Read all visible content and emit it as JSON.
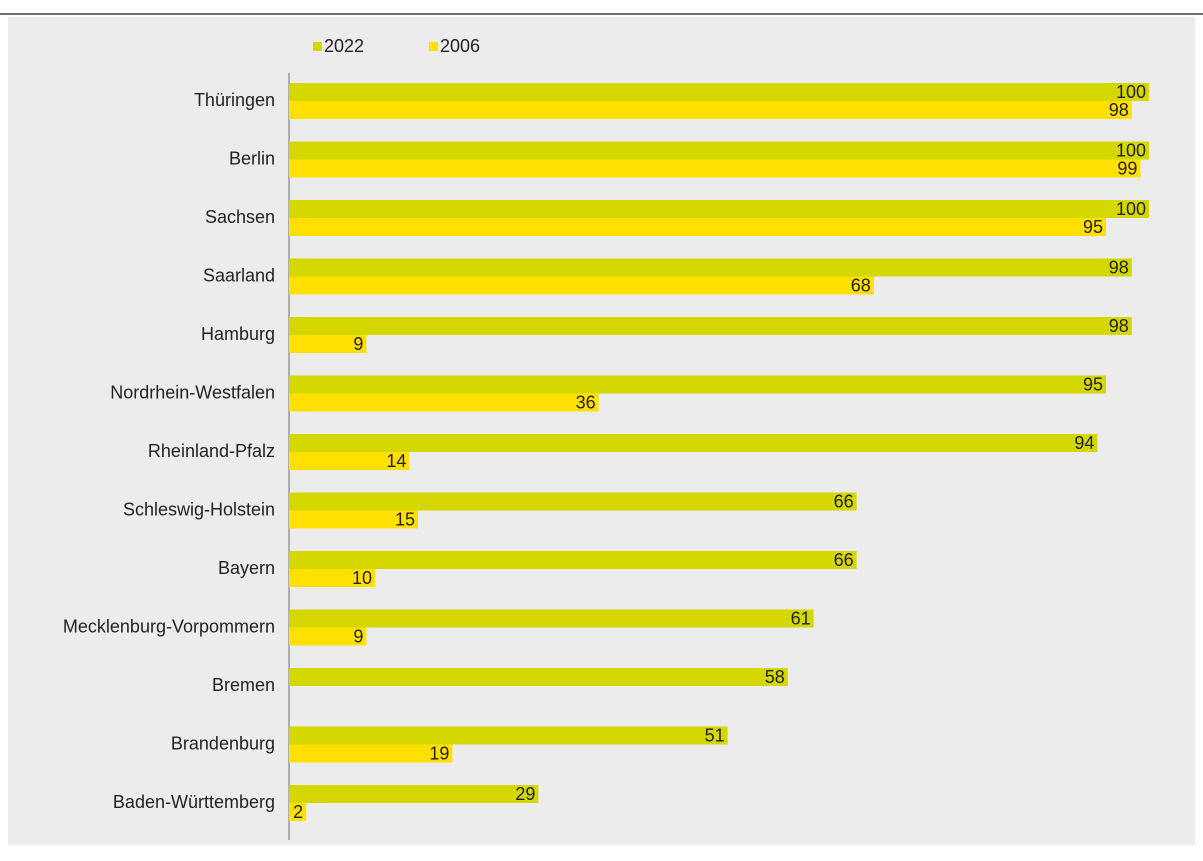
{
  "chart_data": {
    "type": "bar",
    "orientation": "horizontal",
    "categories": [
      "Thüringen",
      "Berlin",
      "Sachsen",
      "Saarland",
      "Hamburg",
      "Nordrhein-Westfalen",
      "Rheinland-Pfalz",
      "Schleswig-Holstein",
      "Bayern",
      "Mecklenburg-Vorpommern",
      "Bremen",
      "Brandenburg",
      "Baden-Württemberg"
    ],
    "series": [
      {
        "name": "2022",
        "color": "#d4d800",
        "values": [
          100,
          100,
          100,
          98,
          98,
          95,
          94,
          66,
          66,
          61,
          58,
          51,
          29
        ]
      },
      {
        "name": "2006",
        "color": "#ffe000",
        "values": [
          98,
          99,
          95,
          68,
          9,
          36,
          14,
          15,
          10,
          9,
          null,
          19,
          2
        ]
      }
    ],
    "xlim": [
      0,
      100
    ],
    "grid": false,
    "legend_position": "top-left",
    "background": "#ececec"
  }
}
